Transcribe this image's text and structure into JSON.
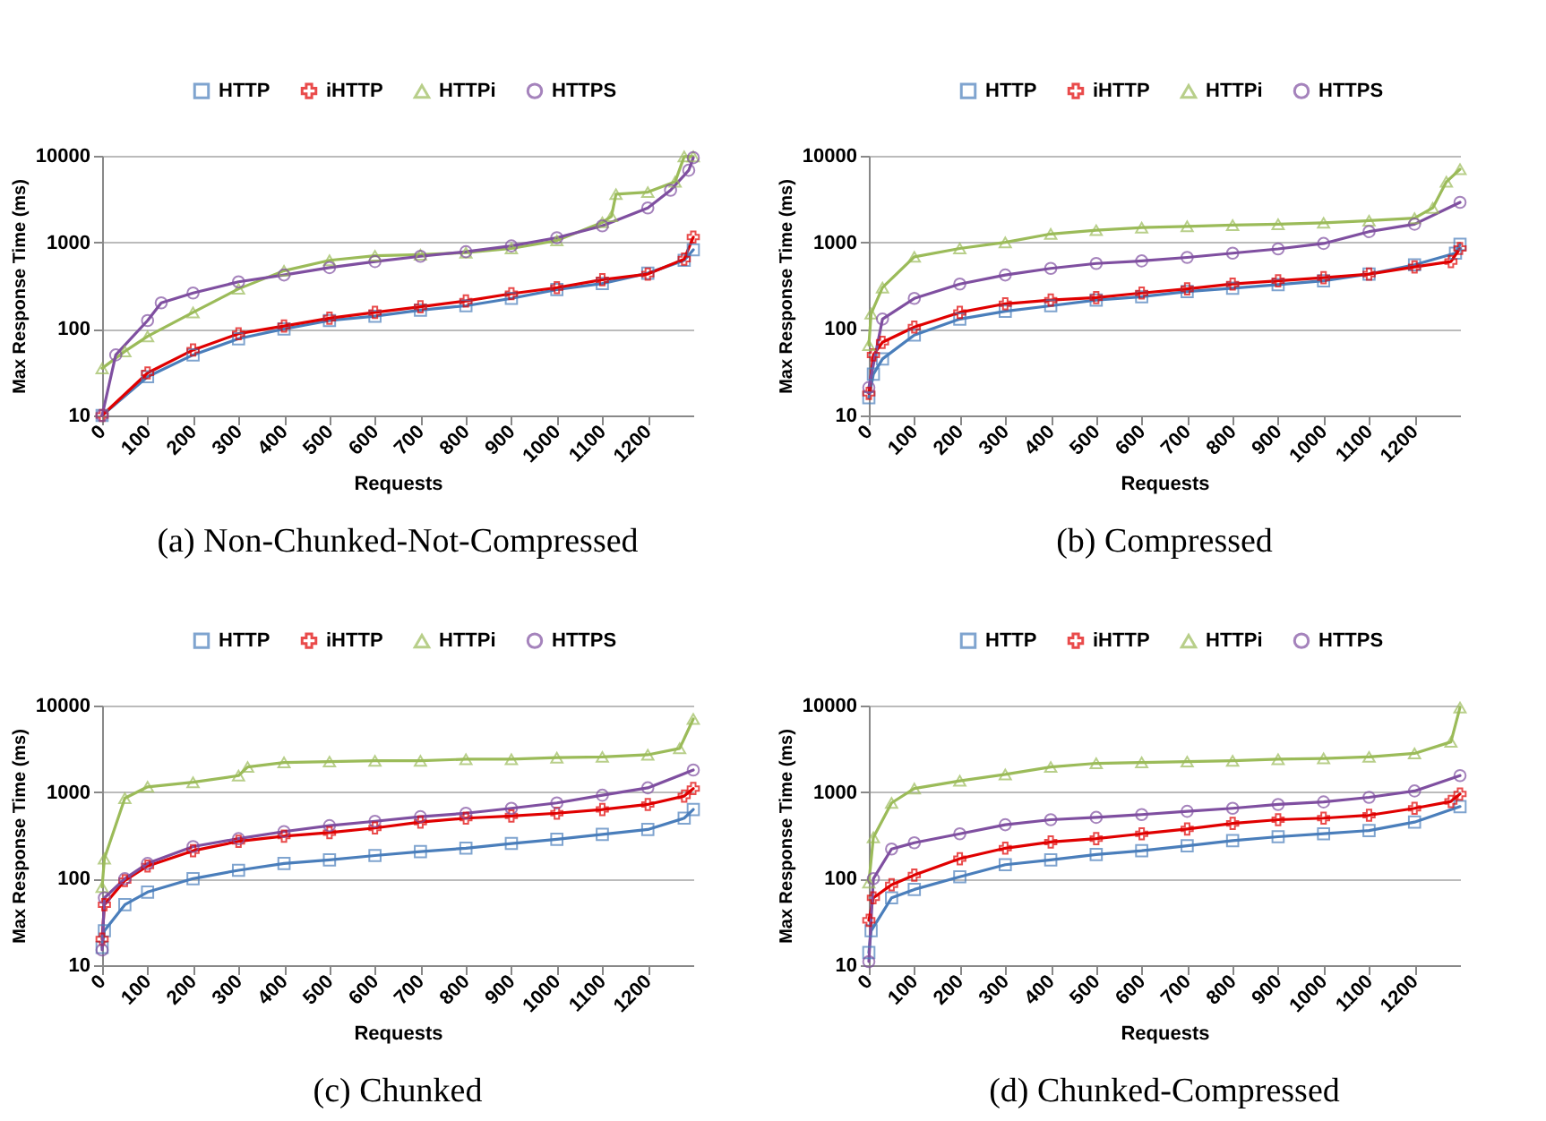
{
  "chart_data": [
    {
      "type": "line",
      "title": "(a) Non-Chunked-Not-Compressed",
      "xlabel": "Requests",
      "ylabel": "Max Response Time (ms)",
      "xlim": [
        0,
        1300
      ],
      "xticks": [
        0,
        100,
        200,
        300,
        400,
        500,
        600,
        700,
        800,
        900,
        1000,
        1100,
        1200
      ],
      "ylim": [
        10,
        10000
      ],
      "yticks": [
        10,
        100,
        1000,
        10000
      ],
      "log": true,
      "grid": "y",
      "legend": "top",
      "series": [
        {
          "name": "HTTP",
          "color": "#4a7ebb",
          "marker": "square",
          "x": [
            0,
            100,
            200,
            300,
            400,
            500,
            600,
            700,
            800,
            900,
            1000,
            1100,
            1200,
            1280,
            1300
          ],
          "values": [
            10,
            28,
            50,
            77,
            100,
            125,
            140,
            165,
            185,
            225,
            285,
            335,
            440,
            620,
            820
          ]
        },
        {
          "name": "iHTTP",
          "color": "#e00000",
          "marker": "cross",
          "x": [
            0,
            100,
            200,
            300,
            400,
            500,
            600,
            700,
            800,
            900,
            1000,
            1100,
            1200,
            1280,
            1300
          ],
          "values": [
            10,
            31,
            57,
            88,
            108,
            133,
            155,
            180,
            210,
            255,
            300,
            370,
            430,
            640,
            1150
          ]
        },
        {
          "name": "HTTPi",
          "color": "#9bbb59",
          "marker": "triangle",
          "x": [
            0,
            50,
            100,
            200,
            300,
            400,
            500,
            600,
            700,
            800,
            900,
            1000,
            1100,
            1120,
            1130,
            1200,
            1260,
            1280,
            1300
          ],
          "values": [
            35,
            55,
            82,
            155,
            290,
            470,
            620,
            700,
            720,
            760,
            850,
            1050,
            1700,
            2000,
            3600,
            3800,
            5000,
            9800,
            9800
          ]
        },
        {
          "name": "HTTPS",
          "color": "#7f4fa0",
          "marker": "circle",
          "x": [
            0,
            30,
            100,
            130,
            200,
            300,
            400,
            500,
            600,
            700,
            800,
            900,
            1000,
            1100,
            1200,
            1250,
            1290,
            1300
          ],
          "values": [
            10,
            50,
            125,
            200,
            260,
            350,
            420,
            510,
            600,
            690,
            780,
            910,
            1130,
            1550,
            2500,
            4000,
            6800,
            9500
          ]
        }
      ]
    },
    {
      "type": "line",
      "title": "(b) Compressed",
      "xlabel": "Requests",
      "ylabel": "Max Response Time (ms)",
      "xlim": [
        0,
        1300
      ],
      "xticks": [
        0,
        100,
        200,
        300,
        400,
        500,
        600,
        700,
        800,
        900,
        1000,
        1100,
        1200
      ],
      "ylim": [
        10,
        10000
      ],
      "yticks": [
        10,
        100,
        1000,
        10000
      ],
      "log": true,
      "grid": "y",
      "legend": "top",
      "series": [
        {
          "name": "HTTP",
          "color": "#4a7ebb",
          "marker": "square",
          "x": [
            0,
            10,
            30,
            100,
            200,
            300,
            400,
            500,
            600,
            700,
            800,
            900,
            1000,
            1100,
            1200,
            1290,
            1300
          ],
          "values": [
            16,
            30,
            45,
            85,
            130,
            160,
            185,
            215,
            235,
            270,
            295,
            325,
            360,
            430,
            550,
            750,
            950
          ]
        },
        {
          "name": "iHTTP",
          "color": "#e00000",
          "marker": "cross",
          "x": [
            0,
            10,
            30,
            100,
            200,
            300,
            400,
            500,
            600,
            700,
            800,
            900,
            1000,
            1100,
            1200,
            1280,
            1300
          ],
          "values": [
            18,
            50,
            70,
            105,
            155,
            195,
            215,
            230,
            260,
            290,
            330,
            360,
            390,
            430,
            520,
            600,
            850
          ]
        },
        {
          "name": "HTTPi",
          "color": "#9bbb59",
          "marker": "triangle",
          "x": [
            0,
            5,
            30,
            100,
            200,
            300,
            400,
            500,
            600,
            700,
            800,
            900,
            1000,
            1100,
            1200,
            1240,
            1270,
            1300
          ],
          "values": [
            65,
            150,
            300,
            680,
            850,
            1000,
            1250,
            1380,
            1480,
            1530,
            1580,
            1620,
            1680,
            1780,
            1900,
            2500,
            5000,
            7000
          ]
        },
        {
          "name": "HTTPS",
          "color": "#7f4fa0",
          "marker": "circle",
          "x": [
            0,
            30,
            100,
            200,
            300,
            400,
            500,
            600,
            700,
            800,
            900,
            1000,
            1100,
            1200,
            1300
          ],
          "values": [
            21,
            130,
            225,
            330,
            420,
            500,
            570,
            610,
            670,
            750,
            840,
            970,
            1330,
            1620,
            2900
          ]
        }
      ]
    },
    {
      "type": "line",
      "title": "(c) Chunked",
      "xlabel": "Requests",
      "ylabel": "Max Response Time (ms)",
      "xlim": [
        0,
        1300
      ],
      "xticks": [
        0,
        100,
        200,
        300,
        400,
        500,
        600,
        700,
        800,
        900,
        1000,
        1100,
        1200
      ],
      "ylim": [
        10,
        10000
      ],
      "yticks": [
        10,
        100,
        1000,
        10000
      ],
      "log": true,
      "grid": "y",
      "legend": "top",
      "series": [
        {
          "name": "HTTP",
          "color": "#4a7ebb",
          "marker": "square",
          "x": [
            0,
            5,
            50,
            100,
            200,
            300,
            400,
            500,
            600,
            700,
            800,
            900,
            1000,
            1100,
            1200,
            1280,
            1300
          ],
          "values": [
            16,
            25,
            50,
            70,
            100,
            125,
            150,
            165,
            185,
            205,
            225,
            255,
            285,
            325,
            370,
            500,
            630
          ]
        },
        {
          "name": "iHTTP",
          "color": "#e00000",
          "marker": "cross",
          "x": [
            0,
            5,
            50,
            100,
            200,
            300,
            400,
            500,
            600,
            700,
            800,
            900,
            1000,
            1100,
            1200,
            1280,
            1300
          ],
          "values": [
            20,
            50,
            95,
            140,
            210,
            270,
            310,
            340,
            385,
            450,
            500,
            530,
            570,
            630,
            720,
            900,
            1100
          ]
        },
        {
          "name": "HTTPi",
          "color": "#9bbb59",
          "marker": "triangle",
          "x": [
            0,
            5,
            50,
            100,
            200,
            300,
            320,
            400,
            500,
            600,
            700,
            800,
            900,
            1000,
            1100,
            1200,
            1270,
            1300
          ],
          "values": [
            80,
            170,
            850,
            1150,
            1300,
            1550,
            1950,
            2200,
            2250,
            2300,
            2300,
            2400,
            2400,
            2500,
            2550,
            2700,
            3200,
            7000
          ]
        },
        {
          "name": "HTTPS",
          "color": "#7f4fa0",
          "marker": "circle",
          "x": [
            0,
            5,
            50,
            100,
            200,
            300,
            400,
            500,
            600,
            700,
            800,
            900,
            1000,
            1100,
            1200,
            1300
          ],
          "values": [
            15,
            60,
            100,
            150,
            235,
            290,
            350,
            410,
            460,
            520,
            570,
            650,
            750,
            920,
            1120,
            1800
          ]
        }
      ]
    },
    {
      "type": "line",
      "title": "(d) Chunked-Compressed",
      "xlabel": "Requests",
      "ylabel": "Max Response Time (ms)",
      "xlim": [
        0,
        1300
      ],
      "xticks": [
        0,
        100,
        200,
        300,
        400,
        500,
        600,
        700,
        800,
        900,
        1000,
        1100,
        1200
      ],
      "ylim": [
        10,
        10000
      ],
      "yticks": [
        10,
        100,
        1000,
        10000
      ],
      "log": true,
      "grid": "y",
      "legend": "top",
      "series": [
        {
          "name": "HTTP",
          "color": "#4a7ebb",
          "marker": "square",
          "x": [
            0,
            5,
            50,
            100,
            200,
            300,
            400,
            500,
            600,
            700,
            800,
            900,
            1000,
            1100,
            1200,
            1300
          ],
          "values": [
            14,
            25,
            60,
            75,
            105,
            145,
            165,
            190,
            210,
            240,
            275,
            305,
            330,
            360,
            450,
            680
          ]
        },
        {
          "name": "iHTTP",
          "color": "#e00000",
          "marker": "cross",
          "x": [
            0,
            10,
            50,
            100,
            200,
            300,
            400,
            500,
            600,
            700,
            800,
            900,
            1000,
            1100,
            1200,
            1280,
            1300
          ],
          "values": [
            33,
            60,
            85,
            110,
            170,
            225,
            265,
            290,
            330,
            375,
            435,
            480,
            500,
            540,
            650,
            780,
            950
          ]
        },
        {
          "name": "HTTPi",
          "color": "#9bbb59",
          "marker": "triangle",
          "x": [
            0,
            10,
            50,
            100,
            200,
            300,
            400,
            500,
            600,
            700,
            800,
            900,
            1000,
            1100,
            1200,
            1280,
            1300
          ],
          "values": [
            90,
            300,
            750,
            1100,
            1350,
            1600,
            1950,
            2150,
            2200,
            2250,
            2300,
            2400,
            2450,
            2550,
            2800,
            3800,
            9500
          ]
        },
        {
          "name": "HTTPS",
          "color": "#7f4fa0",
          "marker": "circle",
          "x": [
            0,
            10,
            50,
            100,
            200,
            300,
            400,
            500,
            600,
            700,
            800,
            900,
            1000,
            1100,
            1200,
            1300
          ],
          "values": [
            11,
            100,
            220,
            260,
            330,
            420,
            480,
            510,
            550,
            600,
            650,
            720,
            770,
            870,
            1030,
            1550
          ]
        }
      ]
    }
  ]
}
